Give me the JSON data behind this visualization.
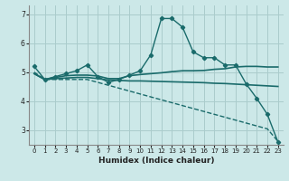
{
  "xlabel": "Humidex (Indice chaleur)",
  "xlim": [
    -0.5,
    23.5
  ],
  "ylim": [
    2.5,
    7.3
  ],
  "yticks": [
    3,
    4,
    5,
    6,
    7
  ],
  "xticks": [
    0,
    1,
    2,
    3,
    4,
    5,
    6,
    7,
    8,
    9,
    10,
    11,
    12,
    13,
    14,
    15,
    16,
    17,
    18,
    19,
    20,
    21,
    22,
    23
  ],
  "bg_color": "#cce8e8",
  "grid_color": "#aacccc",
  "line_color": "#1a6b6b",
  "lines": [
    {
      "x": [
        0,
        1,
        2,
        3,
        4,
        5,
        6,
        7,
        8,
        9,
        10,
        11,
        12,
        13,
        14,
        15,
        16,
        17,
        18,
        19,
        20,
        21,
        22,
        23
      ],
      "y": [
        5.2,
        4.75,
        4.85,
        4.95,
        5.05,
        5.25,
        4.85,
        4.65,
        4.75,
        4.9,
        5.05,
        5.6,
        6.85,
        6.85,
        6.55,
        5.7,
        5.5,
        5.5,
        5.25,
        5.25,
        4.6,
        4.1,
        3.55,
        2.6
      ],
      "marker": "D",
      "markersize": 2.2,
      "linewidth": 1.0,
      "linestyle": "-"
    },
    {
      "x": [
        0,
        1,
        2,
        3,
        4,
        5,
        6,
        7,
        8,
        9,
        10,
        11,
        12,
        13,
        14,
        15,
        16,
        17,
        18,
        19,
        20,
        21,
        22,
        23
      ],
      "y": [
        5.0,
        4.75,
        4.75,
        4.75,
        4.75,
        4.75,
        4.65,
        4.55,
        4.45,
        4.35,
        4.25,
        4.15,
        4.05,
        3.95,
        3.85,
        3.75,
        3.65,
        3.55,
        3.45,
        3.35,
        3.25,
        3.15,
        3.05,
        2.62
      ],
      "marker": null,
      "markersize": 0,
      "linewidth": 1.0,
      "linestyle": "--"
    },
    {
      "x": [
        0,
        1,
        2,
        3,
        4,
        5,
        6,
        7,
        8,
        9,
        10,
        11,
        12,
        13,
        14,
        15,
        16,
        17,
        18,
        19,
        20,
        21,
        22,
        23
      ],
      "y": [
        4.95,
        4.75,
        4.78,
        4.8,
        4.82,
        4.82,
        4.78,
        4.73,
        4.72,
        4.7,
        4.7,
        4.69,
        4.68,
        4.67,
        4.66,
        4.65,
        4.64,
        4.62,
        4.61,
        4.59,
        4.57,
        4.55,
        4.53,
        4.51
      ],
      "marker": null,
      "markersize": 0,
      "linewidth": 1.2,
      "linestyle": "-"
    },
    {
      "x": [
        0,
        1,
        2,
        3,
        4,
        5,
        6,
        7,
        8,
        9,
        10,
        11,
        12,
        13,
        14,
        15,
        16,
        17,
        18,
        19,
        20,
        21,
        22,
        23
      ],
      "y": [
        4.95,
        4.75,
        4.82,
        4.88,
        4.9,
        4.9,
        4.87,
        4.78,
        4.78,
        4.88,
        4.92,
        4.95,
        4.98,
        5.02,
        5.05,
        5.05,
        5.06,
        5.1,
        5.12,
        5.18,
        5.2,
        5.2,
        5.18,
        5.18
      ],
      "marker": null,
      "markersize": 0,
      "linewidth": 1.2,
      "linestyle": "-"
    }
  ]
}
